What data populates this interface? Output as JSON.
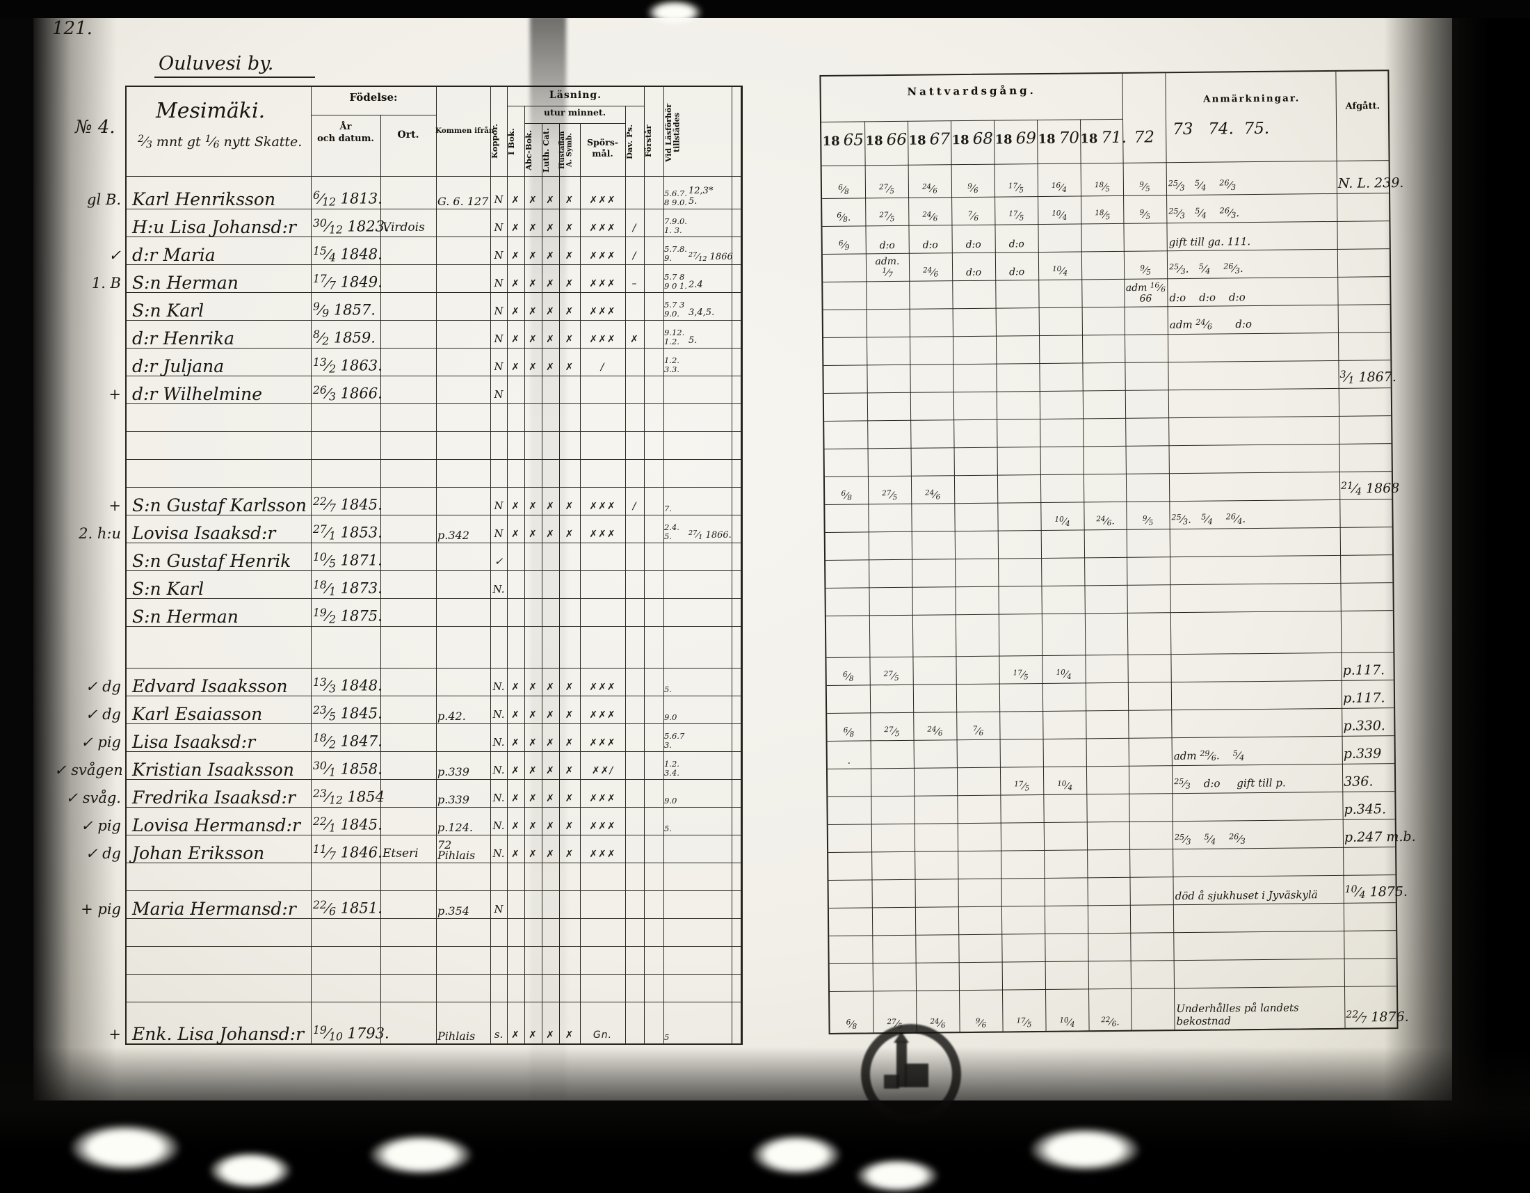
{
  "headers": {
    "page_no": "121.",
    "village": "Ouluvesi by.",
    "farm_no": "№ 4.",
    "farm": "Mesimäki.",
    "farm_sub": "2/3 mnt gt 1/6 nytt Skatte.",
    "fodelse": "Födelse:",
    "ar": "År\noch datum.",
    "ort": "Ort.",
    "kommen": "Kommen ifrån",
    "koppor": "Koppor.",
    "lasning": "Läsning.",
    "utur": "utur minnet.",
    "cols": [
      "I Bok.",
      "Abc-Bok.",
      "Luth. Cat.",
      "Hustaflan\nA. Symb.",
      "Spörs-\nmål.",
      "Dav. Ps."
    ],
    "forstar": "Förstår",
    "vidlas": "Vid Läsförhör\ntillstädes",
    "nattvard": "Nattvardsgång.",
    "year_printed": "18",
    "years": [
      "65",
      "66",
      "67",
      "68",
      "69",
      "70",
      "71.",
      "72"
    ],
    "anm": "Anmärkningar.",
    "anm_years": "73   74.  75.",
    "afgatt": "Afgått."
  },
  "rows": [
    {
      "margin": "gl B.",
      "name": "Karl Henriksson",
      "born": "6/12 1813.",
      "ort": "",
      "from": "G. 6. 127",
      "koppor": "N",
      "m": [
        "✗",
        "✗",
        "✗",
        "✗",
        "✗✗✗",
        ""
      ],
      "forst": "",
      "vid": "5.6.7.\n8 9.0.",
      "gut": "12,3*\n5.",
      "comm": [
        "6/8",
        "27/5",
        "24/6",
        "9/6",
        "17/5",
        "16/4",
        "18/5"
      ],
      "c72": "9/5",
      "anm": "25/3   5/4    26/3",
      "afg": "N. L. 239."
    },
    {
      "margin": "",
      "name": "H:u Lisa Johansd:r",
      "born": "30/12 1823.",
      "ort": "Virdois",
      "from": "",
      "koppor": "N",
      "m": [
        "✗",
        "✗",
        "✗",
        "✗",
        "✗✗✗",
        "/"
      ],
      "forst": "",
      "vid": "7.9.0.\n1. 3.",
      "gut": "",
      "comm": [
        "6/8.",
        "27/5",
        "24/6",
        "7/6",
        "17/5",
        "10/4",
        "18/5"
      ],
      "c72": "9/5",
      "anm": "25/3   5/4    26/3.",
      "afg": ""
    },
    {
      "margin": "✓",
      "name": "d:r Maria",
      "born": "15/4 1848.",
      "ort": "",
      "from": "",
      "koppor": "N",
      "m": [
        "✗",
        "✗",
        "✗",
        "✗",
        "✗✗✗",
        "/"
      ],
      "forst": "",
      "vid": "5.7.8.\n9.",
      "gut": "27/12 1866",
      "comm": [
        "6/9",
        "d:o",
        "d:o",
        "d:o",
        "d:o",
        "",
        ""
      ],
      "c72": "",
      "anm": "gift till ga. 111.",
      "afg": ""
    },
    {
      "margin": "1. B",
      "name": "S:n Herman",
      "born": "17/7 1849.",
      "ort": "",
      "from": "",
      "koppor": "N",
      "m": [
        "✗",
        "✗",
        "✗",
        "✗",
        "✗✗✗",
        "–"
      ],
      "forst": "",
      "vid": "5.7 8\n9 0 1.",
      "gut": "2.4",
      "comm": [
        "",
        "adm.\n1/7",
        "24/6",
        "d:o",
        "d:o",
        "10/4",
        ""
      ],
      "c72": "9/5",
      "anm": "25/3.   5/4    26/3.",
      "afg": ""
    },
    {
      "margin": "",
      "name": "S:n Karl",
      "born": "9/9 1857.",
      "ort": "",
      "from": "",
      "koppor": "N",
      "m": [
        "✗",
        "✗",
        "✗",
        "✗",
        "✗✗✗",
        ""
      ],
      "forst": "",
      "vid": "5.7 3\n9.0.",
      "gut": "3,4,5.",
      "comm": [
        "",
        "",
        "",
        "",
        "",
        "",
        ""
      ],
      "c72": "adm 16/6\n66",
      "anm": "d:o    d:o    d:o",
      "afg": ""
    },
    {
      "margin": "",
      "name": "d:r Henrika",
      "born": "8/2 1859.",
      "ort": "",
      "from": "",
      "koppor": "N",
      "m": [
        "✗",
        "✗",
        "✗",
        "✗",
        "✗✗✗",
        "✗"
      ],
      "forst": "",
      "vid": "9.12.\n1.2.",
      "gut": "5.",
      "comm": [
        "",
        "",
        "",
        "",
        "",
        "",
        ""
      ],
      "c72": "",
      "anm": "adm 24/6       d:o",
      "afg": ""
    },
    {
      "margin": "",
      "name": "d:r Juljana",
      "born": "13/2 1863.",
      "ort": "",
      "from": "",
      "koppor": "N",
      "m": [
        "✗",
        "✗",
        "✗",
        "✗",
        "/",
        ""
      ],
      "forst": "",
      "vid": "1.2.\n3.3.",
      "gut": "",
      "comm": [
        "",
        "",
        "",
        "",
        "",
        "",
        ""
      ],
      "c72": "",
      "anm": "",
      "afg": ""
    },
    {
      "margin": "+",
      "name": "d:r Wilhelmine",
      "born": "26/3 1866.",
      "ort": "",
      "from": "",
      "koppor": "N",
      "m": [
        "",
        "",
        "",
        "",
        "",
        ""
      ],
      "forst": "",
      "vid": "",
      "gut": "",
      "comm": [
        "",
        "",
        "",
        "",
        "",
        "",
        ""
      ],
      "c72": "",
      "anm": "",
      "afg": "3/1 1867."
    },
    {},
    {},
    {},
    {
      "margin": "+",
      "name": "S:n Gustaf Karlsson",
      "born": "22/7 1845.",
      "ort": "",
      "from": "",
      "koppor": "N",
      "m": [
        "✗",
        "✗",
        "✗",
        "✗",
        "✗✗✗",
        "/"
      ],
      "forst": "",
      "vid": "7.",
      "gut": "",
      "comm": [
        "6/8",
        "27/5",
        "24/6",
        "",
        "",
        "",
        ""
      ],
      "c72": "",
      "anm": "",
      "afg": "21/4 1868"
    },
    {
      "margin": "2. h:u",
      "name": "Lovisa Isaaksd:r",
      "born": "27/1 1853.",
      "ort": "",
      "from": "p.342",
      "koppor": "N",
      "m": [
        "✗",
        "✗",
        "✗",
        "✗",
        "✗✗✗",
        ""
      ],
      "forst": "",
      "vid": "2.4.\n5.",
      "gut": "27/1 1866.",
      "comm": [
        "",
        "",
        "",
        "",
        "",
        "10/4",
        "24/6."
      ],
      "c72": "9/5",
      "anm": "25/3.   5/4    26/4.",
      "afg": ""
    },
    {
      "margin": "",
      "name": "S:n Gustaf Henrik",
      "born": "10/5 1871.",
      "ort": "",
      "from": "",
      "koppor": "✓",
      "m": [
        "",
        "",
        "",
        "",
        "",
        ""
      ],
      "forst": "",
      "vid": "",
      "gut": "",
      "comm": [
        "",
        "",
        "",
        "",
        "",
        "",
        ""
      ],
      "c72": "",
      "anm": "",
      "afg": ""
    },
    {
      "margin": "",
      "name": "S:n Karl",
      "born": "18/1 1873.",
      "ort": "",
      "from": "",
      "koppor": "N.",
      "m": [
        "",
        "",
        "",
        "",
        "",
        ""
      ],
      "forst": "",
      "vid": "",
      "gut": "",
      "comm": [
        "",
        "",
        "",
        "",
        "",
        "",
        ""
      ],
      "c72": "",
      "anm": "",
      "afg": ""
    },
    {
      "margin": "",
      "name": "S:n Herman",
      "born": "19/2 1875.",
      "ort": "",
      "from": "",
      "koppor": "",
      "m": [
        "",
        "",
        "",
        "",
        "",
        ""
      ],
      "forst": "",
      "vid": "",
      "gut": "",
      "comm": [
        "",
        "",
        "",
        "",
        "",
        "",
        ""
      ],
      "c72": "",
      "anm": "",
      "afg": ""
    },
    {},
    {
      "margin": "✓ dg",
      "name": "Edvard Isaaksson",
      "born": "13/3 1848.",
      "ort": "",
      "from": "",
      "koppor": "N.",
      "m": [
        "✗",
        "✗",
        "✗",
        "✗",
        "✗✗✗",
        ""
      ],
      "forst": "",
      "vid": "5.",
      "gut": "",
      "comm": [
        "6/8",
        "27/5",
        "",
        "",
        "17/5",
        "10/4",
        ""
      ],
      "c72": "",
      "anm": "",
      "afg": "p.117."
    },
    {
      "margin": "✓ dg",
      "name": "Karl Esaiasson",
      "born": "23/5 1845.",
      "ort": "",
      "from": "p.42.",
      "koppor": "N.",
      "m": [
        "✗",
        "✗",
        "✗",
        "✗",
        "✗✗✗",
        ""
      ],
      "forst": "",
      "vid": "9.0",
      "gut": "",
      "comm": [
        "",
        "",
        "",
        "",
        "",
        "",
        ""
      ],
      "c72": "",
      "anm": "",
      "afg": "p.117."
    },
    {
      "margin": "✓ pig",
      "name": "Lisa Isaaksd:r",
      "born": "18/2 1847.",
      "ort": "",
      "from": "",
      "koppor": "N.",
      "m": [
        "✗",
        "✗",
        "✗",
        "✗",
        "✗✗✗",
        ""
      ],
      "forst": "",
      "vid": "5.6.7\n3.",
      "gut": "",
      "comm": [
        "6/8",
        "27/5",
        "24/6",
        "7/6",
        "",
        "",
        ""
      ],
      "c72": "",
      "anm": "",
      "afg": "p.330."
    },
    {
      "margin": "✓ svågen",
      "name": "Kristian Isaaksson",
      "born": "30/1 1858.",
      "ort": "",
      "from": "p.339",
      "koppor": "N.",
      "m": [
        "✗",
        "✗",
        "✗",
        "✗",
        "✗✗/",
        ""
      ],
      "forst": "",
      "vid": "1.2.\n3.4.",
      "gut": "",
      "comm": [
        ".",
        "",
        "",
        "",
        "",
        "",
        ""
      ],
      "c72": "",
      "anm": "adm 29/6.    5/4",
      "afg": "p.339"
    },
    {
      "margin": "✓ svåg.",
      "name": "Fredrika Isaaksd:r",
      "born": "23/12 1854",
      "ort": "",
      "from": "p.339",
      "koppor": "N.",
      "m": [
        "✗",
        "✗",
        "✗",
        "✗",
        "✗✗✗",
        ""
      ],
      "forst": "",
      "vid": "9.0",
      "gut": "",
      "comm": [
        "",
        "",
        "",
        "",
        "17/5",
        "10/4",
        ""
      ],
      "c72": "",
      "anm": "25/3    d:o     gift till p.",
      "afg": "336."
    },
    {
      "margin": "✓ pig",
      "name": "Lovisa Hermansd:r",
      "born": "22/1 1845.",
      "ort": "",
      "from": "p.124.",
      "koppor": "N.",
      "m": [
        "✗",
        "✗",
        "✗",
        "✗",
        "✗✗✗",
        ""
      ],
      "forst": "",
      "vid": "5.",
      "gut": "",
      "comm": [
        "",
        "",
        "",
        "",
        "",
        "",
        ""
      ],
      "c72": "",
      "anm": "",
      "afg": "p.345."
    },
    {
      "margin": "✓ dg",
      "name": "Johan Eriksson",
      "born": "11/7 1846.",
      "ort": "Etseri",
      "from": "72\nPihlais",
      "koppor": "N.",
      "m": [
        "✗",
        "✗",
        "✗",
        "✗",
        "✗✗✗",
        ""
      ],
      "forst": "",
      "vid": "",
      "gut": "",
      "comm": [
        "",
        "",
        "",
        "",
        "",
        "",
        ""
      ],
      "c72": "",
      "anm": "25/3    5/4    26/3",
      "afg": "p.247 m.b."
    },
    {},
    {
      "margin": "+ pig",
      "name": "Maria Hermansd:r",
      "born": "22/6 1851.",
      "ort": "",
      "from": "p.354",
      "koppor": "N",
      "m": [
        "",
        "",
        "",
        "",
        "",
        ""
      ],
      "forst": "",
      "vid": "",
      "gut": "",
      "comm": [
        "",
        "",
        "",
        "",
        "",
        "",
        ""
      ],
      "c72": "",
      "anm": "död å sjukhuset i Jyväskylä",
      "afg": "10/4 1875."
    },
    {},
    {},
    {},
    {
      "margin": "+",
      "name": "Enk. Lisa Johansd:r",
      "born": "19/10 1793.",
      "ort": "",
      "from": "Pihlais",
      "koppor": "s.",
      "m": [
        "✗",
        "✗",
        "✗",
        "✗",
        "Gn.",
        ""
      ],
      "forst": "",
      "vid": "5",
      "gut": "",
      "comm": [
        "6/8",
        "27/5",
        "24/6",
        "9/6",
        "17/5",
        "10/4",
        "22/6."
      ],
      "c72": "",
      "anm": "Underhålles på landets\nbekostnad",
      "afg": "22/7 1876."
    }
  ]
}
